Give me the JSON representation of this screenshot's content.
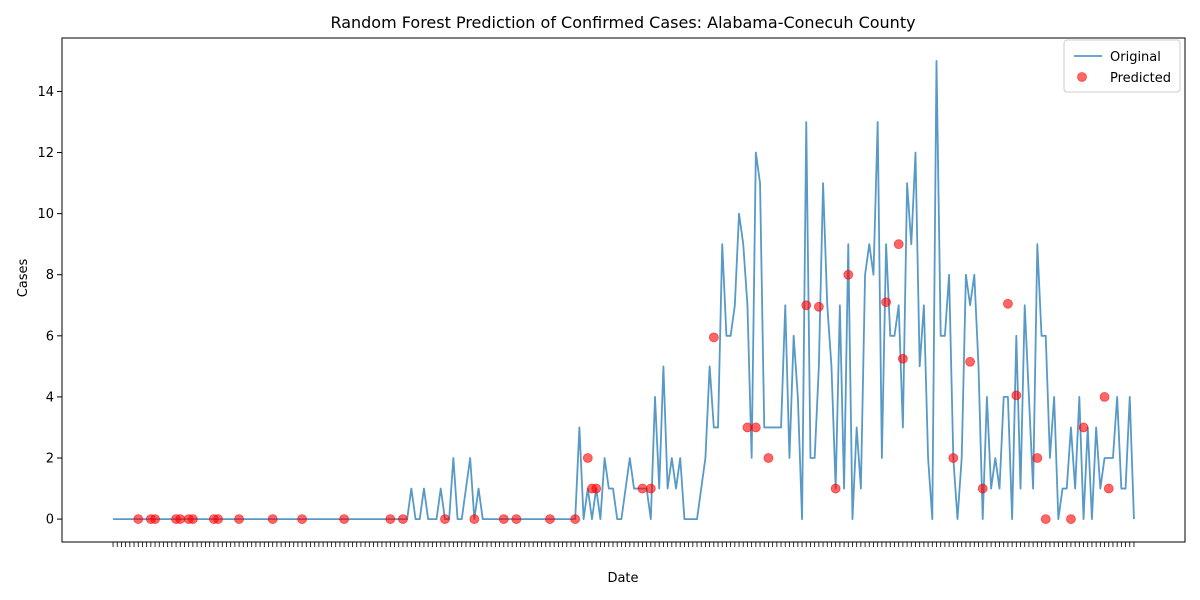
{
  "chart_data": {
    "type": "line",
    "title": "Random Forest Prediction of Confirmed Cases: Alabama-Conecuh County",
    "xlabel": "Date",
    "ylabel": "Cases",
    "ylim": [
      -0.75,
      15.75
    ],
    "yticks": [
      0,
      2,
      4,
      6,
      8,
      10,
      12,
      14
    ],
    "grid": false,
    "legend_position": "top-right",
    "colors": {
      "original": "#1f77b4",
      "predicted": "#ff0000"
    },
    "series": [
      {
        "name": "Original",
        "kind": "line",
        "values": [
          0,
          0,
          0,
          0,
          0,
          0,
          0,
          0,
          0,
          0,
          0,
          0,
          0,
          0,
          0,
          0,
          0,
          0,
          0,
          0,
          0,
          0,
          0,
          0,
          0,
          0,
          0,
          0,
          0,
          0,
          0,
          0,
          0,
          0,
          0,
          0,
          0,
          0,
          0,
          0,
          0,
          0,
          0,
          0,
          0,
          0,
          0,
          0,
          0,
          0,
          0,
          0,
          0,
          0,
          0,
          0,
          0,
          0,
          0,
          0,
          0,
          0,
          0,
          0,
          0,
          0,
          0,
          0,
          0,
          0,
          0,
          1,
          0,
          0,
          1,
          0,
          0,
          0,
          1,
          0,
          0,
          2,
          0,
          0,
          1,
          2,
          0,
          1,
          0,
          0,
          0,
          0,
          0,
          0,
          0,
          0,
          0,
          0,
          0,
          0,
          0,
          0,
          0,
          0,
          0,
          0,
          0,
          0,
          0,
          0,
          0,
          3,
          0,
          1,
          0,
          1,
          0,
          2,
          1,
          1,
          0,
          0,
          1,
          2,
          1,
          1,
          1,
          1,
          0,
          4,
          1,
          5,
          1,
          2,
          1,
          2,
          0,
          0,
          0,
          0,
          1,
          2,
          5,
          3,
          3,
          9,
          6,
          6,
          7,
          10,
          9,
          7,
          2,
          12,
          11,
          3,
          3,
          3,
          3,
          3,
          7,
          2,
          6,
          4,
          0,
          13,
          2,
          2,
          5,
          11,
          7,
          5,
          1,
          7,
          1,
          9,
          0,
          3,
          1,
          8,
          9,
          8,
          13,
          2,
          9,
          6,
          6,
          7,
          3,
          11,
          9,
          12,
          5,
          7,
          2,
          0,
          15,
          6,
          6,
          8,
          2,
          0,
          2,
          8,
          7,
          8,
          5,
          0,
          4,
          1,
          2,
          1,
          4,
          4,
          0,
          6,
          1,
          7,
          4,
          1,
          9,
          6,
          6,
          2,
          4,
          0,
          1,
          1,
          3,
          1,
          4,
          0,
          3,
          0,
          3,
          1,
          2,
          2,
          2,
          4,
          1,
          1,
          4,
          0
        ]
      },
      {
        "name": "Predicted",
        "kind": "scatter",
        "points": [
          [
            6,
            0
          ],
          [
            9,
            0
          ],
          [
            10,
            0
          ],
          [
            15,
            0
          ],
          [
            16,
            0
          ],
          [
            18,
            0
          ],
          [
            19,
            0
          ],
          [
            24,
            0
          ],
          [
            25,
            0
          ],
          [
            30,
            0
          ],
          [
            38,
            0
          ],
          [
            45,
            0
          ],
          [
            55,
            0
          ],
          [
            66,
            0
          ],
          [
            69,
            0
          ],
          [
            79,
            0
          ],
          [
            86,
            0
          ],
          [
            93,
            0
          ],
          [
            96,
            0
          ],
          [
            104,
            0
          ],
          [
            110,
            0
          ],
          [
            113,
            2
          ],
          [
            114,
            1
          ],
          [
            115,
            1
          ],
          [
            126,
            1
          ],
          [
            128,
            1
          ],
          [
            143,
            5.95
          ],
          [
            151,
            3
          ],
          [
            153,
            3
          ],
          [
            156,
            2
          ],
          [
            165,
            7
          ],
          [
            168,
            6.95
          ],
          [
            172,
            1
          ],
          [
            175,
            8
          ],
          [
            184,
            7.1
          ],
          [
            187,
            9
          ],
          [
            188,
            5.25
          ],
          [
            200,
            2
          ],
          [
            204,
            5.15
          ],
          [
            207,
            1
          ],
          [
            213,
            7.05
          ],
          [
            215,
            4.05
          ],
          [
            220,
            2
          ],
          [
            222,
            0
          ],
          [
            228,
            0
          ],
          [
            231,
            3
          ],
          [
            236,
            4
          ],
          [
            237,
            1
          ]
        ]
      }
    ]
  }
}
